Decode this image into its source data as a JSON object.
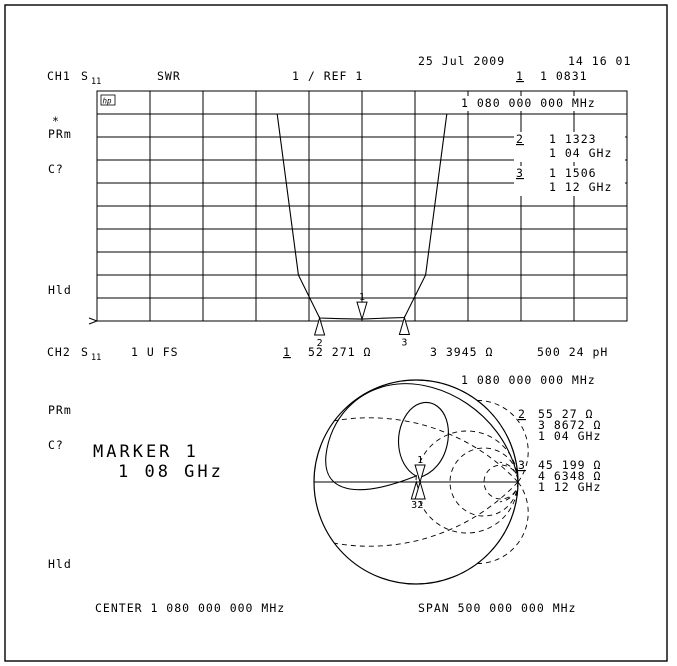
{
  "header": {
    "date": "25 Jul 2009",
    "time": "14 16 01"
  },
  "ch1": {
    "channel": "CH1",
    "param": "S",
    "param_sub": "11",
    "format": "SWR",
    "scale": "1  /  REF 1",
    "marker_active_num": "1",
    "marker_active_value": "1 0831",
    "marker_active_freq": "1 080 000 000 MHz",
    "marker2_num": "2",
    "marker2_value": "1 1323",
    "marker2_freq": "1 04 GHz",
    "marker3_num": "3",
    "marker3_value": "1 1506",
    "marker3_freq": "1 12 GHz",
    "stars": "*",
    "prm": "PRm",
    "cq": "C?",
    "hld": "Hld",
    "box": "hp"
  },
  "ch2": {
    "channel": "CH2",
    "param": "S",
    "param_sub": "11",
    "format": "1 U FS",
    "marker_active_num": "1",
    "marker_active_r": "52 271 Ω",
    "marker_active_x": "3 3945 Ω",
    "marker_active_l": "500 24 pH",
    "marker_active_freq": "1 080 000 000 MHz",
    "marker2_num": "2",
    "marker2_r": "55 27  Ω",
    "marker2_x": "3 8672 Ω",
    "marker2_freq": "1 04 GHz",
    "marker3_num": "3",
    "marker3_r": "45 199 Ω",
    "marker3_x": "4 6348 Ω",
    "marker3_freq": "1 12 GHz",
    "prm": "PRm",
    "cq": "C?",
    "hld": "Hld"
  },
  "marker_banner": {
    "line1": "MARKER 1",
    "line2": "1 08 GHz"
  },
  "footer": {
    "center": "CENTER 1 080 000 000 MHz",
    "span": "SPAN  500 000 000 MHz"
  },
  "chart_data": [
    {
      "type": "line",
      "title": "",
      "xlabel": "Frequency",
      "ylabel": "SWR",
      "x": [
        0.83,
        0.95,
        1.0,
        1.02,
        1.04,
        1.06,
        1.08,
        1.1,
        1.12,
        1.14,
        1.16,
        1.21,
        1.33
      ],
      "series": [
        {
          "values": [
            10,
            10,
            10,
            3.0,
            1.1323,
            1.1,
            1.0831,
            1.12,
            1.1506,
            3.0,
            10,
            10,
            10
          ]
        }
      ],
      "xlim": [
        0.83,
        1.33
      ],
      "ylim": [
        1,
        11
      ],
      "x_unit": "GHz",
      "markers": [
        {
          "num": "1",
          "freq_ghz": 1.08,
          "value": 1.0831
        },
        {
          "num": "2",
          "freq_ghz": 1.04,
          "value": 1.1323
        },
        {
          "num": "3",
          "freq_ghz": 1.12,
          "value": 1.1506
        }
      ],
      "grid": true
    },
    {
      "type": "scatter",
      "title": "",
      "xlabel": "",
      "ylabel": "",
      "markers": [
        {
          "num": "1",
          "freq_ghz": 1.08,
          "r_ohm": 52.271,
          "x_ohm": 3.3945
        },
        {
          "num": "2",
          "freq_ghz": 1.04,
          "r_ohm": 55.27,
          "x_ohm": 3.8672
        },
        {
          "num": "3",
          "freq_ghz": 1.12,
          "r_ohm": 45.199,
          "x_ohm": 4.6348
        }
      ],
      "grid": true
    }
  ]
}
